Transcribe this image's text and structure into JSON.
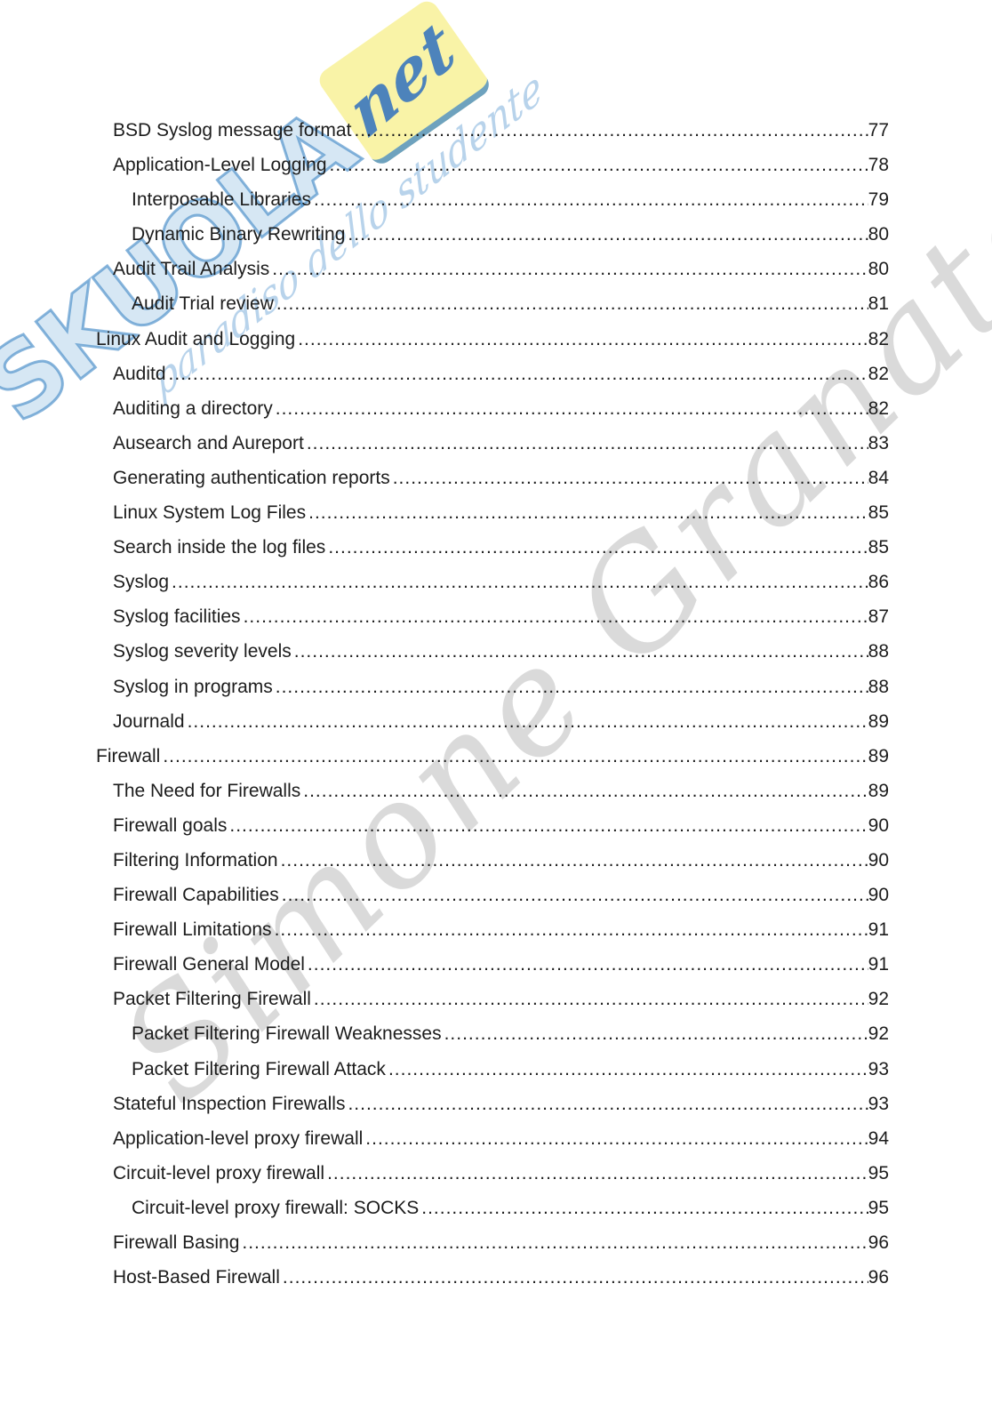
{
  "page": {
    "background": "#ffffff",
    "text_color": "#1c1c1c"
  },
  "watermarks": {
    "logo": {
      "word": "SKUOLA",
      "script": "net",
      "tagline": "paradiso dello studente",
      "yellow_color": "#f8f2a0",
      "blue_color": "#3f87c6"
    },
    "author": {
      "text": "Simone Granato",
      "color": "#c9c9c9"
    }
  },
  "toc": {
    "entries": [
      {
        "title": "BSD Syslog message format",
        "page": "77",
        "level": 1
      },
      {
        "title": "Application-Level Logging",
        "page": "78",
        "level": 1
      },
      {
        "title": "Interposable Libraries",
        "page": "79",
        "level": 2
      },
      {
        "title": "Dynamic Binary Rewriting",
        "page": "80",
        "level": 2
      },
      {
        "title": "Audit Trail Analysis",
        "page": "80",
        "level": 1
      },
      {
        "title": "Audit Trial review",
        "page": "81",
        "level": 2
      },
      {
        "title": "Linux Audit and Logging",
        "page": "82",
        "level": 0
      },
      {
        "title": "Auditd",
        "page": "82",
        "level": 1
      },
      {
        "title": "Auditing a directory",
        "page": "82",
        "level": 1
      },
      {
        "title": "Ausearch and Aureport",
        "page": "83",
        "level": 1
      },
      {
        "title": "Generating authentication reports",
        "page": "84",
        "level": 1
      },
      {
        "title": "Linux System Log Files",
        "page": "85",
        "level": 1
      },
      {
        "title": "Search inside the log files",
        "page": "85",
        "level": 1
      },
      {
        "title": "Syslog",
        "page": "86",
        "level": 1
      },
      {
        "title": "Syslog facilities",
        "page": "87",
        "level": 1
      },
      {
        "title": "Syslog severity levels",
        "page": "88",
        "level": 1
      },
      {
        "title": "Syslog in programs",
        "page": "88",
        "level": 1
      },
      {
        "title": "Journald",
        "page": "89",
        "level": 1
      },
      {
        "title": "Firewall",
        "page": "89",
        "level": 0
      },
      {
        "title": "The Need for Firewalls",
        "page": "89",
        "level": 1
      },
      {
        "title": "Firewall goals",
        "page": "90",
        "level": 1
      },
      {
        "title": "Filtering Information",
        "page": "90",
        "level": 1
      },
      {
        "title": "Firewall Capabilities",
        "page": "90",
        "level": 1
      },
      {
        "title": "Firewall Limitations",
        "page": "91",
        "level": 1
      },
      {
        "title": "Firewall General Model",
        "page": "91",
        "level": 1
      },
      {
        "title": "Packet Filtering Firewall",
        "page": "92",
        "level": 1
      },
      {
        "title": "Packet Filtering Firewall Weaknesses",
        "page": "92",
        "level": 2
      },
      {
        "title": "Packet Filtering Firewall Attack",
        "page": "93",
        "level": 2
      },
      {
        "title": "Stateful Inspection Firewalls",
        "page": "93",
        "level": 1
      },
      {
        "title": "Application-level proxy firewall",
        "page": "94",
        "level": 1
      },
      {
        "title": "Circuit-level proxy firewall",
        "page": "95",
        "level": 1
      },
      {
        "title": "Circuit-level proxy firewall: SOCKS",
        "page": "95",
        "level": 2
      },
      {
        "title": "Firewall Basing",
        "page": "96",
        "level": 1
      },
      {
        "title": "Host-Based Firewall",
        "page": "96",
        "level": 1
      }
    ]
  }
}
